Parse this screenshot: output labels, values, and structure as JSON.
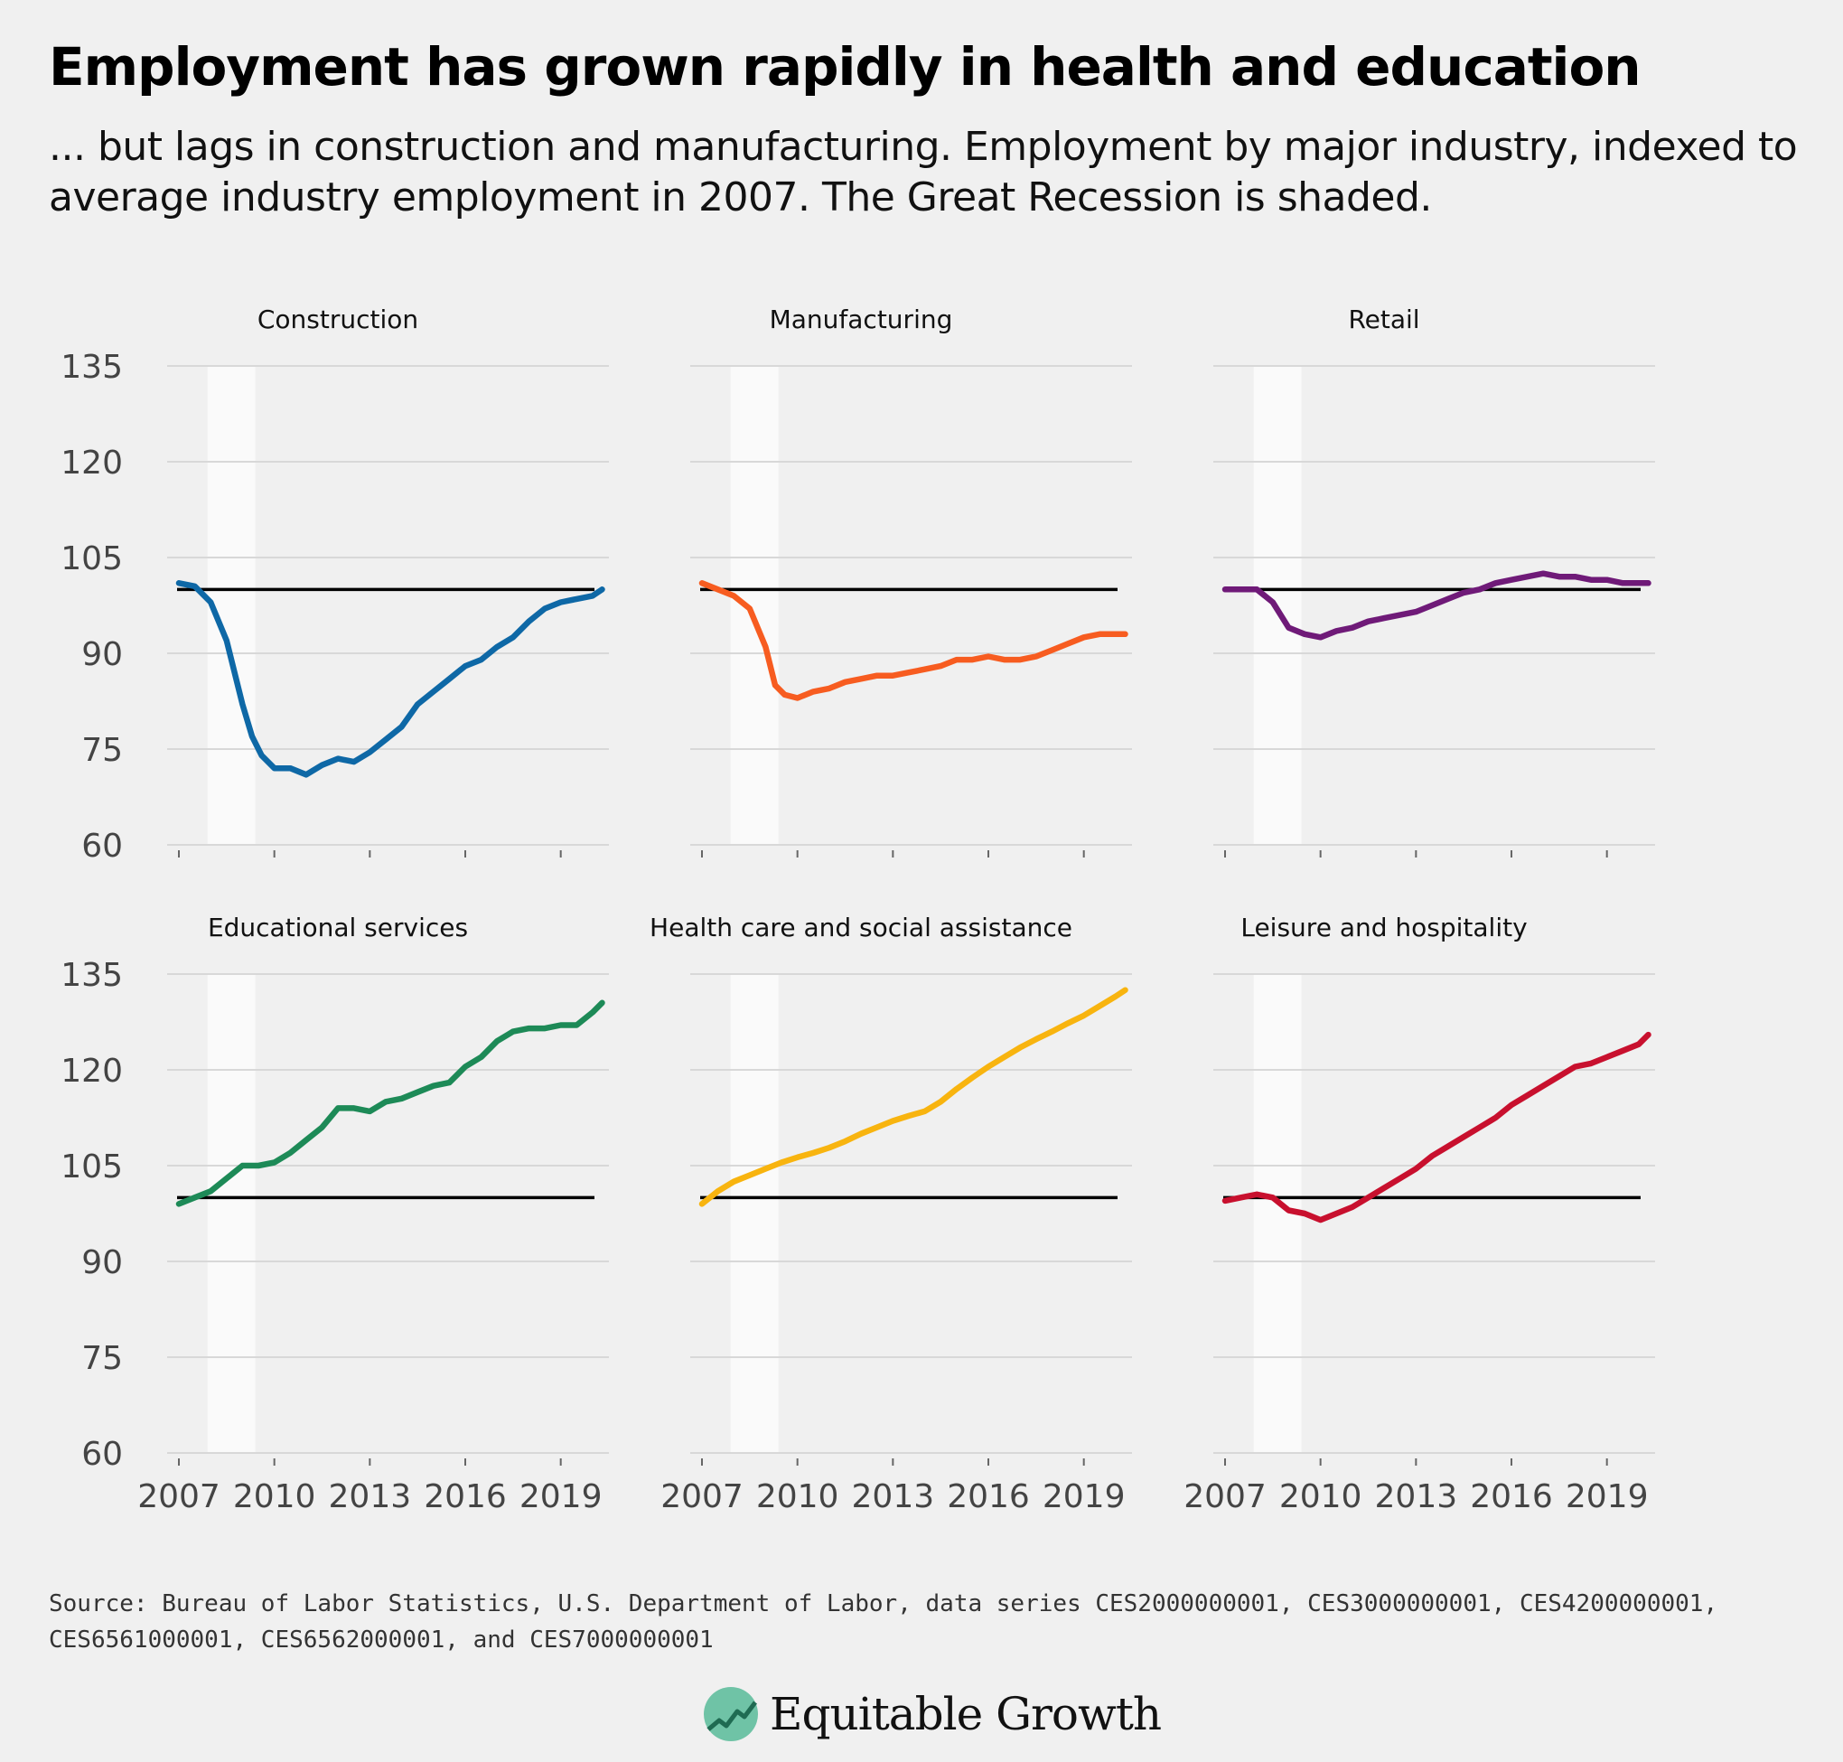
{
  "title": "Employment has grown rapidly in health and education",
  "subtitle": "... but lags in construction and manufacturing. Employment by major industry, indexed to average industry employment in 2007. The Great Recession is shaded.",
  "source": "Source: Bureau of Labor Statistics, U.S. Department of Labor, data series CES2000000001, CES3000000001, CES4200000001, CES6561000001, CES6562000001, and CES7000000001",
  "logo_text": "Equitable Growth",
  "chart_data": {
    "type": "line",
    "layout": "small-multiples 3x2",
    "ylim": [
      60,
      135
    ],
    "yticks": [
      60,
      75,
      90,
      105,
      120,
      135
    ],
    "xticks": [
      2007,
      2010,
      2013,
      2016,
      2019
    ],
    "xlim": [
      2007,
      2020.4
    ],
    "reference_line": 100,
    "recession_shading": [
      2007.9,
      2009.4
    ],
    "grid": "horizontal",
    "panels": [
      {
        "name": "Construction",
        "color": "#0e68a6",
        "x": [
          2007,
          2007.5,
          2008,
          2008.5,
          2009,
          2009.3,
          2009.6,
          2010,
          2010.5,
          2011,
          2011.5,
          2012,
          2012.5,
          2013,
          2013.5,
          2014,
          2014.5,
          2015,
          2015.5,
          2016,
          2016.5,
          2017,
          2017.5,
          2018,
          2018.5,
          2019,
          2019.5,
          2020,
          2020.3
        ],
        "y": [
          101,
          100.5,
          98,
          92,
          82,
          77,
          74,
          72,
          72,
          71,
          72.5,
          73.5,
          73,
          74.5,
          76.5,
          78.5,
          82,
          84,
          86,
          88,
          89,
          91,
          92.5,
          95,
          97,
          98,
          98.5,
          99,
          100
        ]
      },
      {
        "name": "Manufacturing",
        "color": "#f75c20",
        "x": [
          2007,
          2007.5,
          2008,
          2008.5,
          2009,
          2009.3,
          2009.6,
          2010,
          2010.5,
          2011,
          2011.5,
          2012,
          2012.5,
          2013,
          2013.5,
          2014,
          2014.5,
          2015,
          2015.5,
          2016,
          2016.5,
          2017,
          2017.5,
          2018,
          2018.5,
          2019,
          2019.5,
          2020,
          2020.3
        ],
        "y": [
          101,
          100,
          99,
          97,
          91,
          85,
          83.5,
          83,
          84,
          84.5,
          85.5,
          86,
          86.5,
          86.5,
          87,
          87.5,
          88,
          89,
          89,
          89.5,
          89,
          89,
          89.5,
          90.5,
          91.5,
          92.5,
          93,
          93,
          93
        ]
      },
      {
        "name": "Retail",
        "color": "#6f1a78",
        "x": [
          2007,
          2007.5,
          2008,
          2008.5,
          2009,
          2009.5,
          2010,
          2010.5,
          2011,
          2011.5,
          2012,
          2012.5,
          2013,
          2013.5,
          2014,
          2014.5,
          2015,
          2015.5,
          2016,
          2016.5,
          2017,
          2017.5,
          2018,
          2018.5,
          2019,
          2019.5,
          2020,
          2020.3
        ],
        "y": [
          100,
          100,
          100,
          98,
          94,
          93,
          92.5,
          93.5,
          94,
          95,
          95.5,
          96,
          96.5,
          97.5,
          98.5,
          99.5,
          100,
          101,
          101.5,
          102,
          102.5,
          102,
          102,
          101.5,
          101.5,
          101,
          101,
          101
        ]
      },
      {
        "name": "Educational services",
        "color": "#1d8a57",
        "x": [
          2007,
          2007.5,
          2008,
          2008.5,
          2009,
          2009.5,
          2010,
          2010.5,
          2011,
          2011.5,
          2012,
          2012.5,
          2013,
          2013.5,
          2014,
          2014.5,
          2015,
          2015.5,
          2016,
          2016.5,
          2017,
          2017.5,
          2018,
          2018.5,
          2019,
          2019.5,
          2020,
          2020.3
        ],
        "y": [
          99,
          100,
          101,
          103,
          105,
          105,
          105.5,
          107,
          109,
          111,
          114,
          114,
          113.5,
          115,
          115.5,
          116.5,
          117.5,
          118,
          120.5,
          122,
          124.5,
          126,
          126.5,
          126.5,
          127,
          127,
          129,
          130.5
        ]
      },
      {
        "name": "Health care and social assistance",
        "color": "#f8b40f",
        "x": [
          2007,
          2007.5,
          2008,
          2008.5,
          2009,
          2009.5,
          2010,
          2010.5,
          2011,
          2011.5,
          2012,
          2012.5,
          2013,
          2013.5,
          2014,
          2014.5,
          2015,
          2015.5,
          2016,
          2016.5,
          2017,
          2017.5,
          2018,
          2018.5,
          2019,
          2019.5,
          2020,
          2020.3
        ],
        "y": [
          99,
          101,
          102.5,
          103.5,
          104.5,
          105.5,
          106.3,
          107,
          107.8,
          108.8,
          110,
          111,
          112,
          112.8,
          113.5,
          115,
          117,
          118.8,
          120.5,
          122,
          123.5,
          124.8,
          126,
          127.3,
          128.5,
          130,
          131.5,
          132.5
        ]
      },
      {
        "name": "Leisure and hospitality",
        "color": "#c8102e",
        "x": [
          2007,
          2007.5,
          2008,
          2008.5,
          2009,
          2009.5,
          2010,
          2010.5,
          2011,
          2011.5,
          2012,
          2012.5,
          2013,
          2013.5,
          2014,
          2014.5,
          2015,
          2015.5,
          2016,
          2016.5,
          2017,
          2017.5,
          2018,
          2018.5,
          2019,
          2019.5,
          2020,
          2020.3
        ],
        "y": [
          99.5,
          100,
          100.5,
          100,
          98,
          97.5,
          96.5,
          97.5,
          98.5,
          100,
          101.5,
          103,
          104.5,
          106.5,
          108,
          109.5,
          111,
          112.5,
          114.5,
          116,
          117.5,
          119,
          120.5,
          121,
          122,
          123,
          124,
          125.5
        ]
      }
    ]
  }
}
